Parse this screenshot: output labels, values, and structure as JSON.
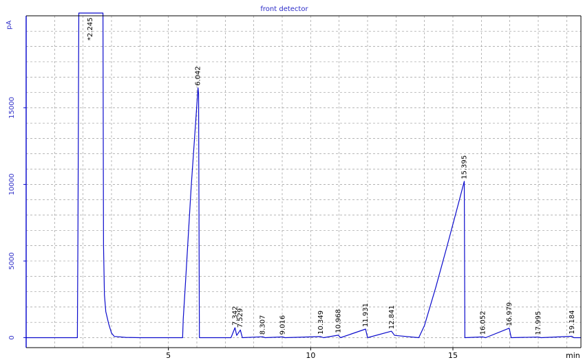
{
  "chart_data": {
    "type": "line",
    "title": "front detector",
    "ylabel": "pA",
    "xlabel": "min",
    "xlim": [
      0,
      19.5
    ],
    "ylim": [
      -650,
      21000
    ],
    "x_ticks": [
      5,
      10,
      15
    ],
    "y_ticks": [
      0,
      5000,
      10000,
      15000
    ],
    "grid": true,
    "colors": {
      "trace": "#0a0acc",
      "grid": "#9a9a9a",
      "axis": "#0000cc"
    },
    "series": [
      {
        "points": [
          [
            0,
            0
          ],
          [
            1.8,
            0
          ],
          [
            1.82,
            6500
          ],
          [
            1.85,
            25000
          ],
          [
            2.7,
            25000
          ],
          [
            2.72,
            6000
          ],
          [
            2.75,
            2800
          ],
          [
            2.8,
            1700
          ],
          [
            2.9,
            900
          ],
          [
            3.0,
            300
          ],
          [
            3.1,
            80
          ],
          [
            3.5,
            20
          ],
          [
            4.0,
            0
          ],
          [
            5.5,
            0
          ],
          [
            5.52,
            1200
          ],
          [
            5.6,
            3600
          ],
          [
            5.8,
            9800
          ],
          [
            6.0,
            15200
          ],
          [
            6.04,
            16300
          ],
          [
            6.06,
            15900
          ],
          [
            6.09,
            0
          ],
          [
            7.2,
            0
          ],
          [
            7.34,
            650
          ],
          [
            7.4,
            150
          ],
          [
            7.53,
            500
          ],
          [
            7.6,
            0
          ],
          [
            8.31,
            60
          ],
          [
            8.4,
            0
          ],
          [
            9.02,
            50
          ],
          [
            9.1,
            0
          ],
          [
            10.35,
            70
          ],
          [
            10.45,
            0
          ],
          [
            10.97,
            160
          ],
          [
            11.05,
            0
          ],
          [
            11.93,
            560
          ],
          [
            12.0,
            0
          ],
          [
            12.84,
            420
          ],
          [
            12.95,
            150
          ],
          [
            13.8,
            0
          ],
          [
            14.0,
            800
          ],
          [
            14.4,
            3300
          ],
          [
            14.8,
            6000
          ],
          [
            15.2,
            8800
          ],
          [
            15.4,
            10200
          ],
          [
            15.42,
            0
          ],
          [
            16.05,
            50
          ],
          [
            16.15,
            0
          ],
          [
            16.98,
            620
          ],
          [
            17.05,
            0
          ],
          [
            18.0,
            40
          ],
          [
            18.1,
            0
          ],
          [
            19.18,
            90
          ],
          [
            19.25,
            0
          ],
          [
            19.5,
            0
          ]
        ]
      }
    ],
    "peaks": [
      {
        "label": "*2.245",
        "x": 2.245,
        "y": 21000
      },
      {
        "label": "6.042",
        "x": 6.042,
        "y": 16300
      },
      {
        "label": "7.342",
        "x": 7.342,
        "y": 650
      },
      {
        "label": "7.529",
        "x": 7.529,
        "y": 500
      },
      {
        "label": "8.307",
        "x": 8.307,
        "y": 60
      },
      {
        "label": "9.016",
        "x": 9.016,
        "y": 50
      },
      {
        "label": "10.349",
        "x": 10.349,
        "y": 70
      },
      {
        "label": "10.968",
        "x": 10.968,
        "y": 160
      },
      {
        "label": "11.931",
        "x": 11.931,
        "y": 560
      },
      {
        "label": "12.841",
        "x": 12.841,
        "y": 420
      },
      {
        "label": "15.395",
        "x": 15.395,
        "y": 10200
      },
      {
        "label": "16.052",
        "x": 16.052,
        "y": 50
      },
      {
        "label": "16.979",
        "x": 16.979,
        "y": 620
      },
      {
        "label": "17.995",
        "x": 17.995,
        "y": 40
      },
      {
        "label": "19.184",
        "x": 19.184,
        "y": 90
      }
    ]
  }
}
